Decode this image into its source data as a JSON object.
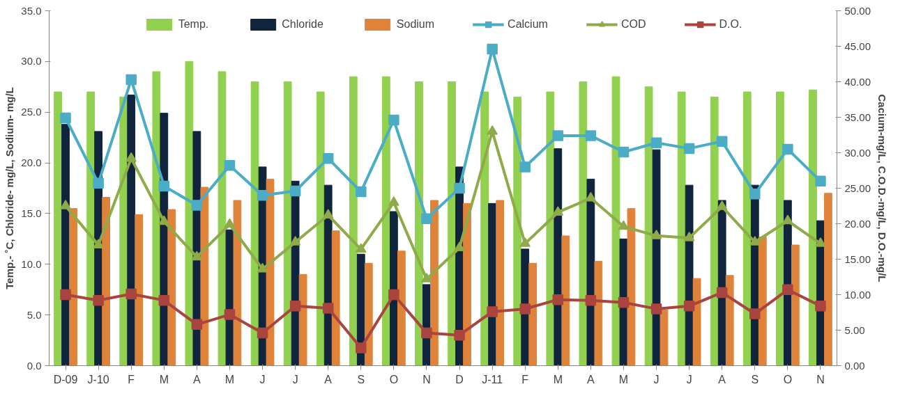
{
  "chart_data": {
    "type": "bar",
    "ylabel": "Temp.- ˚C, Chloride- mg/L, Sodium- mg/L",
    "y2label": "Cacium-mg/L, C.O.D.-mg/L, D.O.-mg/L",
    "categories": [
      "D-09",
      "J-10",
      "F",
      "M",
      "A",
      "M",
      "J",
      "J",
      "A",
      "S",
      "O",
      "N",
      "D",
      "J-11",
      "F",
      "M",
      "A",
      "M",
      "J",
      "J",
      "A",
      "S",
      "O",
      "N"
    ],
    "ylim": [
      0,
      35
    ],
    "yticks": [
      {
        "value": 0,
        "label": "0.0"
      },
      {
        "value": 5,
        "label": "5.0"
      },
      {
        "value": 10,
        "label": "10.0"
      },
      {
        "value": 15,
        "label": "15.0"
      },
      {
        "value": 20,
        "label": "20.0"
      },
      {
        "value": 25,
        "label": "25.0"
      },
      {
        "value": 30,
        "label": "30.0"
      },
      {
        "value": 35,
        "label": "35.0"
      }
    ],
    "y2lim": [
      0,
      50
    ],
    "y2ticks": [
      {
        "value": 0,
        "label": "0.00"
      },
      {
        "value": 5,
        "label": "5.00"
      },
      {
        "value": 10,
        "label": "10.00"
      },
      {
        "value": 15,
        "label": "15.00"
      },
      {
        "value": 20,
        "label": "20.00"
      },
      {
        "value": 25,
        "label": "25.00"
      },
      {
        "value": 30,
        "label": "30.00"
      },
      {
        "value": 35,
        "label": "35.00"
      },
      {
        "value": 40,
        "label": "40.00"
      },
      {
        "value": 45,
        "label": "45.00"
      },
      {
        "value": 50,
        "label": "50.00"
      }
    ],
    "legend": "top",
    "grid": false,
    "series": [
      {
        "name": "Temp.",
        "color": "#92d050",
        "values": [
          27,
          27,
          26.5,
          29,
          30,
          29,
          28,
          28,
          27,
          28.5,
          28.5,
          28,
          28,
          27,
          26.5,
          27,
          28,
          28.5,
          27.5,
          27,
          26.5,
          27,
          27,
          27.2
        ]
      },
      {
        "name": "Chloride",
        "color": "#10243e",
        "values": [
          23.8,
          23.1,
          26.7,
          24.9,
          23.1,
          13.4,
          19.6,
          18.2,
          17.8,
          11,
          15.2,
          8,
          19.6,
          16,
          11.5,
          21.4,
          18.4,
          12.5,
          21.3,
          17.8,
          16.3,
          17.8,
          16.3,
          14.3
        ]
      },
      {
        "name": "Sodium",
        "color": "#e0833a",
        "values": [
          15.5,
          16.6,
          14.9,
          15.4,
          17.6,
          16.3,
          18.4,
          9,
          13.3,
          10.1,
          11.3,
          16.3,
          16,
          16.3,
          10.1,
          12.8,
          10.3,
          15.5,
          5.5,
          8.6,
          8.9,
          12.7,
          11.9,
          17
        ]
      },
      {
        "name": "Calcium",
        "type": "line",
        "axis": "y2",
        "marker": "square",
        "color": "#4bacc6",
        "values": [
          34.9,
          25.7,
          40.3,
          25.3,
          22.6,
          28.2,
          24,
          24.6,
          29.2,
          24.5,
          34.6,
          20.7,
          25,
          44.6,
          28,
          32.4,
          32.4,
          30.1,
          31.4,
          30.6,
          31.6,
          24.2,
          30.5,
          26
        ]
      },
      {
        "name": "COD",
        "type": "line",
        "axis": "y2",
        "marker": "triangle",
        "color": "#8faa48",
        "values": [
          22.5,
          17,
          29.2,
          20.3,
          15.3,
          19.9,
          13.6,
          17.4,
          21.2,
          16.4,
          23,
          12.2,
          16.6,
          33,
          17.2,
          21.6,
          23.6,
          19.6,
          18.3,
          18,
          22.4,
          17.4,
          20.4,
          17.2
        ]
      },
      {
        "name": "D.O.",
        "type": "line",
        "axis": "y2",
        "marker": "square",
        "color": "#a9443f",
        "values": [
          10,
          9.2,
          10.1,
          9.2,
          5.8,
          7.2,
          4.6,
          8.4,
          8.1,
          2.5,
          10,
          4.6,
          4.3,
          7.6,
          8,
          9.3,
          9.2,
          8.9,
          8,
          8.4,
          10.3,
          7.3,
          10.7,
          8.4
        ]
      }
    ]
  }
}
